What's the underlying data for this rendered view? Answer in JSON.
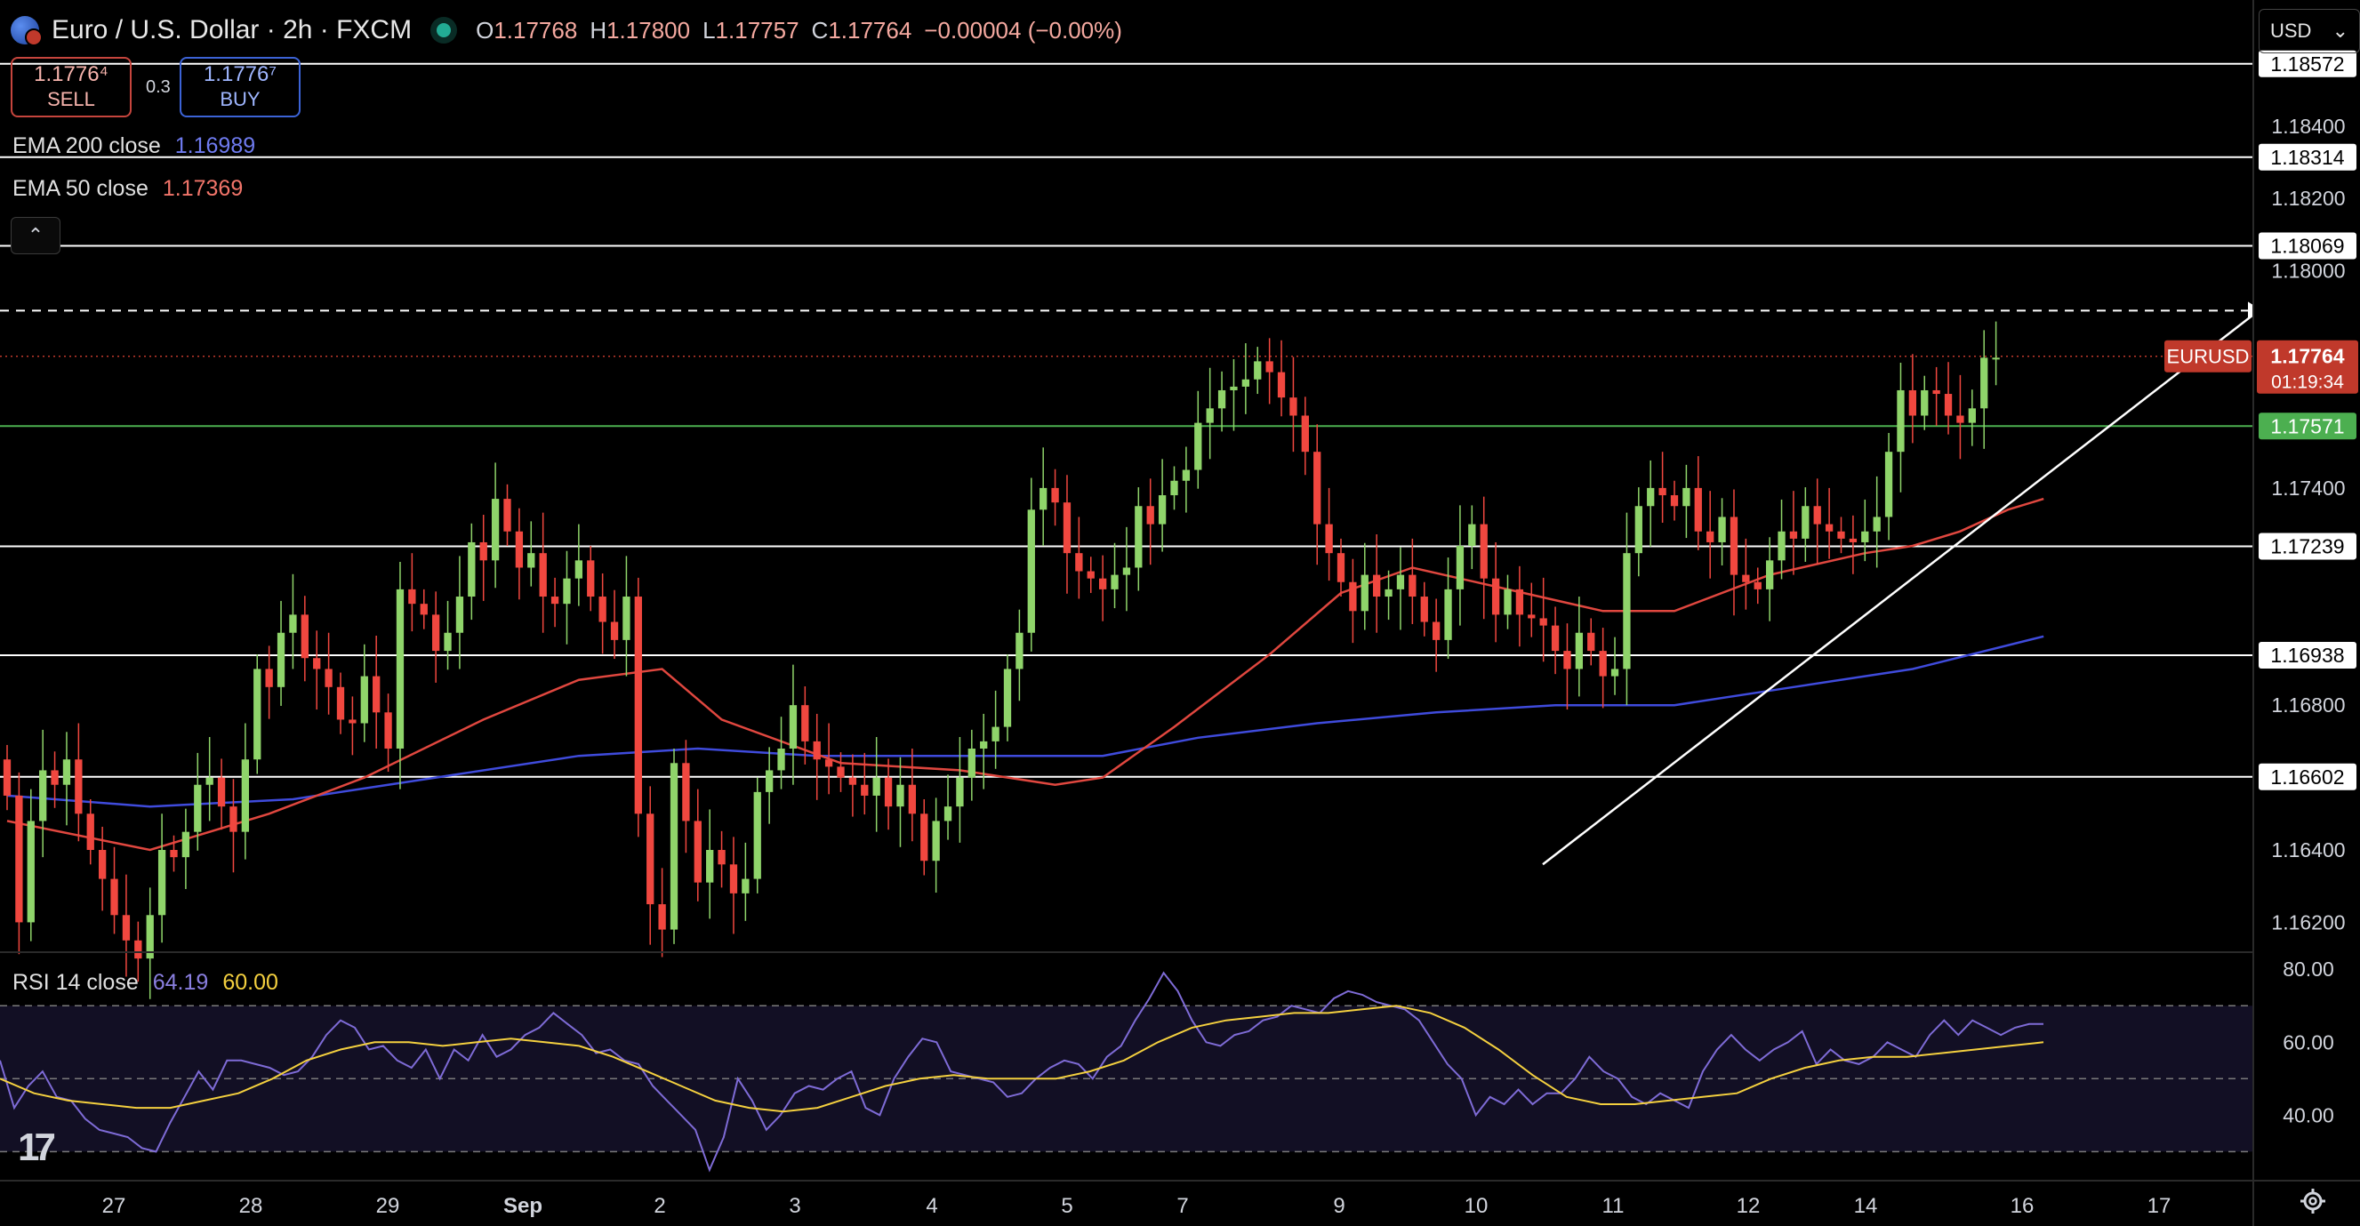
{
  "header": {
    "title": "Euro / U.S. Dollar · 2h · FXCM",
    "ohlc": {
      "o_label": "O",
      "o": "1.17768",
      "h_label": "H",
      "h": "1.17800",
      "l_label": "L",
      "l": "1.17757",
      "c_label": "C",
      "c": "1.17764",
      "change": "−0.00004 (−0.00%)"
    }
  },
  "trade": {
    "sell_price": "1.1776⁴",
    "sell_label": "SELL",
    "spread": "0.3",
    "buy_price": "1.1776⁷",
    "buy_label": "BUY"
  },
  "indicators": {
    "ema200_label": "EMA 200 close",
    "ema200_value": "1.16989",
    "ema200_color": "#3f4bdc",
    "ema50_label": "EMA 50 close",
    "ema50_value": "1.17369",
    "ema50_color": "#e0473f",
    "rsi_label": "RSI 14 close",
    "rsi_value": "64.19",
    "rsi_ma_value": "60.00",
    "rsi_color": "#7e6bd6",
    "rsi_ma_color": "#f4d03f"
  },
  "currency_selector": "USD",
  "colors": {
    "up": "#8fd46a",
    "down": "#f0473f",
    "background": "#000000"
  },
  "chart_data": {
    "type": "candlestick",
    "symbol": "EURUSD",
    "timeframe": "2h",
    "last_price_label": "1.17764",
    "countdown": "01:19:34",
    "ylim": [
      1.1612,
      1.1865
    ],
    "y_ticks": [
      "1.18400",
      "1.18200",
      "1.18000",
      "1.17400",
      "1.16800",
      "1.16400",
      "1.16200"
    ],
    "x_ticks": [
      "27",
      "28",
      "29",
      "Sep",
      "2",
      "3",
      "4",
      "5",
      "7",
      "9",
      "10",
      "11",
      "12",
      "14",
      "16",
      "17"
    ],
    "horizontal_levels": [
      {
        "value": "1.18572",
        "style": "white"
      },
      {
        "value": "1.18314",
        "style": "white"
      },
      {
        "value": "1.18069",
        "style": "white"
      },
      {
        "value": "1.17571",
        "style": "green"
      },
      {
        "value": "1.17239",
        "style": "white"
      },
      {
        "value": "1.16938",
        "style": "white"
      },
      {
        "value": "1.16602",
        "style": "white"
      }
    ],
    "dashed_level": 1.1789,
    "trendline": {
      "from": {
        "index": 120,
        "price": 1.1636
      },
      "to": {
        "index": 168,
        "price": 1.1789
      }
    },
    "candles_close": [
      1.1655,
      1.162,
      1.1648,
      1.1662,
      1.1658,
      1.1665,
      1.165,
      1.164,
      1.1632,
      1.1622,
      1.1615,
      1.161,
      1.1622,
      1.164,
      1.1638,
      1.1645,
      1.1658,
      1.166,
      1.1652,
      1.1645,
      1.1665,
      1.169,
      1.1685,
      1.17,
      1.1705,
      1.1693,
      1.169,
      1.1685,
      1.1676,
      1.1675,
      1.1688,
      1.1678,
      1.1668,
      1.1712,
      1.1708,
      1.1705,
      1.1695,
      1.17,
      1.171,
      1.1725,
      1.172,
      1.1737,
      1.1728,
      1.1718,
      1.1722,
      1.171,
      1.1708,
      1.1715,
      1.172,
      1.171,
      1.1703,
      1.1698,
      1.171,
      1.165,
      1.1625,
      1.1618,
      1.1664,
      1.1648,
      1.1631,
      1.164,
      1.1636,
      1.1628,
      1.1632,
      1.1656,
      1.1662,
      1.1668,
      1.168,
      1.167,
      1.1665,
      1.1663,
      1.166,
      1.1658,
      1.1655,
      1.166,
      1.1652,
      1.1658,
      1.165,
      1.1637,
      1.1648,
      1.1652,
      1.166,
      1.1668,
      1.167,
      1.1674,
      1.169,
      1.17,
      1.1734,
      1.174,
      1.1736,
      1.1722,
      1.1717,
      1.1715,
      1.1712,
      1.1716,
      1.1718,
      1.1735,
      1.173,
      1.1738,
      1.1742,
      1.1745,
      1.1758,
      1.1762,
      1.1767,
      1.1768,
      1.177,
      1.1775,
      1.1772,
      1.1765,
      1.176,
      1.175,
      1.173,
      1.1722,
      1.1714,
      1.1706,
      1.1716,
      1.171,
      1.1712,
      1.1716,
      1.171,
      1.1703,
      1.1698,
      1.1712,
      1.1724,
      1.173,
      1.1715,
      1.1705,
      1.1712,
      1.1705,
      1.1704,
      1.1702,
      1.1695,
      1.169,
      1.17,
      1.1695,
      1.1688,
      1.169,
      1.1722,
      1.1735,
      1.174,
      1.1738,
      1.1735,
      1.174,
      1.1728,
      1.1725,
      1.1732,
      1.1716,
      1.1714,
      1.1712,
      1.172,
      1.1728,
      1.1726,
      1.1735,
      1.173,
      1.1728,
      1.1726,
      1.1725,
      1.1728,
      1.1732,
      1.175,
      1.1767,
      1.176,
      1.1767,
      1.1766,
      1.176,
      1.1758,
      1.1762,
      1.1776,
      1.1776
    ],
    "ema50": {
      "name": "EMA 50 close",
      "points": [
        [
          0,
          1.1648
        ],
        [
          12,
          1.164
        ],
        [
          22,
          1.165
        ],
        [
          30,
          1.166
        ],
        [
          40,
          1.1676
        ],
        [
          48,
          1.1687
        ],
        [
          55,
          1.169
        ],
        [
          60,
          1.1676
        ],
        [
          70,
          1.1664
        ],
        [
          80,
          1.1662
        ],
        [
          88,
          1.1658
        ],
        [
          92,
          1.166
        ],
        [
          98,
          1.1674
        ],
        [
          106,
          1.1694
        ],
        [
          112,
          1.1711
        ],
        [
          118,
          1.1718
        ],
        [
          126,
          1.1712
        ],
        [
          134,
          1.1706
        ],
        [
          140,
          1.1706
        ],
        [
          148,
          1.1716
        ],
        [
          156,
          1.1722
        ],
        [
          160,
          1.1724
        ],
        [
          164,
          1.1728
        ],
        [
          168,
          1.1734
        ],
        [
          171,
          1.1737
        ]
      ]
    },
    "ema200": {
      "name": "EMA 200 close",
      "points": [
        [
          0,
          1.1655
        ],
        [
          12,
          1.1652
        ],
        [
          24,
          1.1654
        ],
        [
          36,
          1.166
        ],
        [
          48,
          1.1666
        ],
        [
          58,
          1.1668
        ],
        [
          68,
          1.1666
        ],
        [
          80,
          1.1666
        ],
        [
          92,
          1.1666
        ],
        [
          100,
          1.1671
        ],
        [
          110,
          1.1675
        ],
        [
          120,
          1.1678
        ],
        [
          130,
          1.168
        ],
        [
          140,
          1.168
        ],
        [
          150,
          1.1685
        ],
        [
          160,
          1.169
        ],
        [
          171,
          1.1699
        ]
      ]
    },
    "rsi": {
      "ylim": [
        24,
        82
      ],
      "y_ticks": [
        "80.00",
        "60.00",
        "40.00"
      ],
      "levels": [
        70,
        50,
        30
      ],
      "rsi_line": [
        55,
        42,
        48,
        52,
        45,
        44,
        39,
        36,
        35,
        34,
        31,
        30,
        38,
        45,
        52,
        47,
        55,
        55,
        54,
        53,
        51,
        52,
        56,
        62,
        66,
        64,
        58,
        59,
        55,
        53,
        58,
        50,
        58,
        55,
        62,
        56,
        58,
        62,
        64,
        68,
        65,
        62,
        57,
        58,
        55,
        54,
        48,
        44,
        40,
        36,
        25,
        34,
        50,
        44,
        36,
        40,
        46,
        48,
        47,
        50,
        52,
        42,
        40,
        50,
        56,
        61,
        60,
        52,
        51,
        50,
        49,
        45,
        46,
        50,
        53,
        55,
        54,
        50,
        56,
        59,
        66,
        72,
        79,
        74,
        66,
        60,
        59,
        62,
        63,
        66,
        67,
        70,
        69,
        68,
        72,
        74,
        73,
        71,
        70,
        69,
        66,
        60,
        54,
        50,
        40,
        45,
        43,
        47,
        43,
        46,
        46,
        50,
        56,
        52,
        50,
        45,
        43,
        46,
        44,
        42,
        52,
        58,
        62,
        58,
        55,
        58,
        60,
        63,
        54,
        58,
        55,
        54,
        56,
        60,
        58,
        56,
        62,
        66,
        62,
        66,
        64,
        62,
        64,
        65,
        65
      ],
      "rsi_ma": [
        50,
        46,
        44,
        43,
        42,
        42,
        44,
        46,
        50,
        55,
        58,
        60,
        60,
        59,
        60,
        61,
        60,
        59,
        56,
        52,
        48,
        44,
        42,
        41,
        42,
        45,
        48,
        50,
        51,
        50,
        50,
        50,
        52,
        55,
        60,
        64,
        66,
        67,
        68,
        68,
        69,
        70,
        68,
        64,
        58,
        51,
        45,
        43,
        43,
        44,
        45,
        46,
        50,
        53,
        55,
        56,
        56,
        57,
        58,
        59,
        60
      ]
    }
  }
}
